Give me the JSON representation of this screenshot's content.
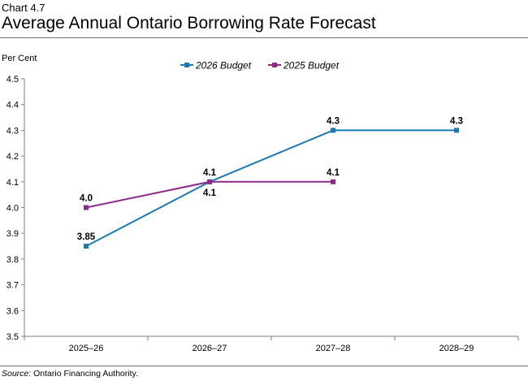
{
  "header": {
    "chart_number": "Chart 4.7",
    "title": "Average Annual Ontario Borrowing Rate Forecast"
  },
  "source": {
    "label": "Source:",
    "text": "Ontario Financing Authority."
  },
  "chart_data": {
    "type": "line",
    "title": "Average Annual Ontario Borrowing Rate Forecast",
    "xlabel": "",
    "ylabel": "Per Cent",
    "categories": [
      "2025–26",
      "2026–27",
      "2027–28",
      "2028–29"
    ],
    "ylim": [
      3.5,
      4.5
    ],
    "yticks": [
      "3.5",
      "3.6",
      "3.7",
      "3.8",
      "3.9",
      "4.0",
      "4.1",
      "4.2",
      "4.3",
      "4.4",
      "4.5"
    ],
    "grid": false,
    "legend_position": "top",
    "series": [
      {
        "name": "2026 Budget",
        "color": "#1a7ab5",
        "values": [
          3.85,
          4.1,
          4.3,
          4.3
        ],
        "labels": [
          "3.85",
          "4.1",
          "4.3",
          "4.3"
        ],
        "label_side": [
          "above",
          "below",
          "above",
          "above"
        ]
      },
      {
        "name": "2025 Budget",
        "color": "#8b2a8b",
        "values": [
          4.0,
          4.1,
          4.1,
          null
        ],
        "labels": [
          "4.0",
          "4.1",
          "4.1",
          null
        ],
        "label_side": [
          "above",
          "above",
          "above",
          null
        ]
      }
    ]
  }
}
